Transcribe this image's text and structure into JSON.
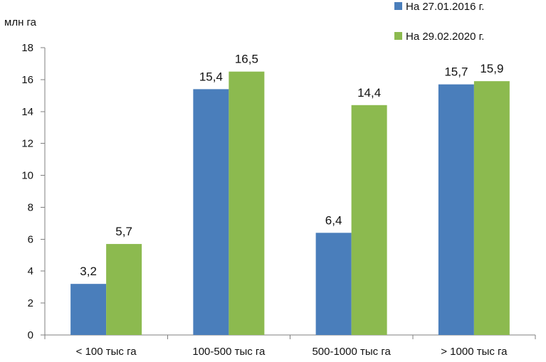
{
  "chart_data": {
    "type": "bar",
    "unit_label": "млн  га",
    "categories": [
      "< 100 тыс га",
      "100-500 тыс га",
      "500-1000 тыс га",
      "> 1000 тыс га"
    ],
    "series": [
      {
        "name": "На 27.01.2016 г.",
        "color": "#4a7ebb",
        "values": [
          3.2,
          15.4,
          6.4,
          15.7
        ],
        "labels": [
          "3,2",
          "15,4",
          "6,4",
          "15,7"
        ]
      },
      {
        "name": "На 29.02.2020 г.",
        "color": "#8cba4f",
        "values": [
          5.7,
          16.5,
          14.4,
          15.9
        ],
        "labels": [
          "5,7",
          "16,5",
          "14,4",
          "15,9"
        ]
      }
    ],
    "ylim": [
      0,
      18
    ],
    "yticks": [
      0,
      2,
      4,
      6,
      8,
      10,
      12,
      14,
      16,
      18
    ],
    "grid": false,
    "legend_position": "top-right"
  }
}
